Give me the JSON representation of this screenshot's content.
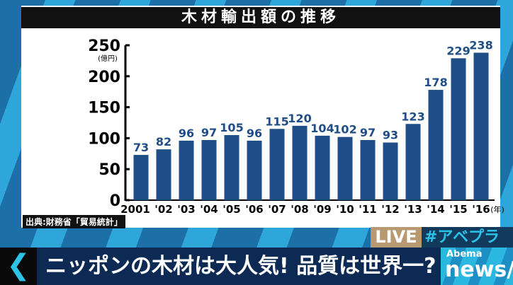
{
  "chart_data": {
    "type": "bar",
    "title": "木材輸出額の推移",
    "ylabel": "(億円)",
    "xlabel": "(年)",
    "categories": [
      "2001",
      "'02",
      "'03",
      "'04",
      "'05",
      "'06",
      "'07",
      "'08",
      "'09",
      "'10",
      "'11",
      "'12",
      "'13",
      "'14",
      "'15",
      "'16"
    ],
    "values": [
      73,
      82,
      96,
      97,
      105,
      96,
      115,
      120,
      104,
      102,
      97,
      93,
      123,
      178,
      229,
      238
    ],
    "ylim": [
      0,
      250
    ],
    "yticks": [
      0,
      50,
      100,
      150,
      200,
      250
    ],
    "grid": false,
    "bar_color": "#1f4e86"
  },
  "source": "出典:財務省「貿易統計」",
  "live": "LIVE",
  "hashtag": "#アベプラ",
  "back_icon": "chevron-left-icon",
  "headline": "ニッポンの木材は大人気! 品質は世界一?",
  "logo": {
    "top": "Abema",
    "bottom": "news/"
  }
}
